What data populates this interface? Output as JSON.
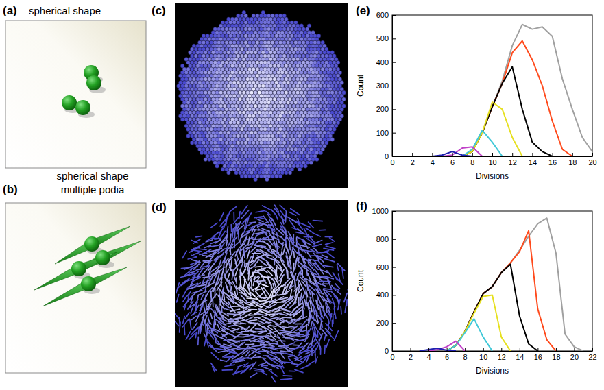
{
  "illustrations": [
    {
      "label": "(a)",
      "caption": [
        "spherical shape"
      ]
    },
    {
      "label": "(b)",
      "caption": [
        "spherical shape",
        "multiple podia"
      ]
    }
  ],
  "images": [
    {
      "label": "(c)"
    },
    {
      "label": "(d)"
    }
  ],
  "chart_data": [
    {
      "type": "line",
      "panel_label": "(e)",
      "x_label": "Divisions",
      "y_label": "Count",
      "x": [
        0,
        1,
        2,
        3,
        4,
        5,
        6,
        7,
        8,
        9,
        10,
        11,
        12,
        13,
        14,
        15,
        16,
        17,
        18,
        19,
        20
      ],
      "xlim": [
        0,
        20
      ],
      "xticks": [
        0,
        2,
        4,
        6,
        8,
        10,
        12,
        14,
        16,
        18,
        20
      ],
      "ylim": [
        0,
        600
      ],
      "yticks": [
        0,
        100,
        200,
        300,
        400,
        500,
        600
      ],
      "series": [
        {
          "color": "#a0a0a0",
          "values": [
            null,
            null,
            null,
            null,
            null,
            null,
            null,
            0,
            20,
            100,
            210,
            320,
            470,
            560,
            540,
            550,
            510,
            330,
            200,
            80,
            20
          ]
        },
        {
          "color": "#ff4a1c",
          "values": [
            null,
            null,
            null,
            null,
            null,
            null,
            null,
            0,
            20,
            100,
            210,
            310,
            440,
            490,
            410,
            300,
            150,
            30,
            0,
            null,
            null
          ]
        },
        {
          "color": "#000000",
          "values": [
            null,
            null,
            null,
            null,
            null,
            null,
            null,
            0,
            20,
            100,
            210,
            310,
            380,
            200,
            60,
            20,
            0,
            null,
            null,
            null,
            null
          ]
        },
        {
          "color": "#e6e020",
          "values": [
            null,
            null,
            null,
            null,
            null,
            null,
            null,
            0,
            20,
            100,
            230,
            200,
            80,
            0,
            null,
            null,
            null,
            null,
            null,
            null,
            null
          ]
        },
        {
          "color": "#40c8d8",
          "values": [
            null,
            null,
            null,
            null,
            null,
            null,
            null,
            0,
            30,
            110,
            60,
            0,
            null,
            null,
            null,
            null,
            null,
            null,
            null,
            null,
            null
          ]
        },
        {
          "color": "#c040c8",
          "values": [
            null,
            null,
            null,
            null,
            null,
            0,
            5,
            35,
            40,
            0,
            null,
            null,
            null,
            null,
            null,
            null,
            null,
            null,
            null,
            null,
            null
          ]
        },
        {
          "color": "#2020b0",
          "values": [
            null,
            null,
            null,
            null,
            0,
            5,
            20,
            5,
            0,
            null,
            null,
            null,
            null,
            null,
            null,
            null,
            null,
            null,
            null,
            null,
            null
          ]
        }
      ]
    },
    {
      "type": "line",
      "panel_label": "(f)",
      "x_label": "Divisions",
      "y_label": "Count",
      "x": [
        0,
        1,
        2,
        3,
        4,
        5,
        6,
        7,
        8,
        9,
        10,
        11,
        12,
        13,
        14,
        15,
        16,
        17,
        18,
        19,
        20,
        21,
        22
      ],
      "xlim": [
        0,
        22
      ],
      "xticks": [
        0,
        2,
        4,
        6,
        8,
        10,
        12,
        14,
        16,
        18,
        20,
        22
      ],
      "ylim": [
        0,
        1000
      ],
      "yticks": [
        0,
        200,
        400,
        600,
        800,
        1000
      ],
      "series": [
        {
          "color": "#a0a0a0",
          "values": [
            null,
            null,
            null,
            null,
            null,
            null,
            0,
            40,
            140,
            280,
            410,
            460,
            560,
            630,
            720,
            820,
            910,
            950,
            700,
            120,
            30,
            0,
            null
          ]
        },
        {
          "color": "#ff4a1c",
          "values": [
            null,
            null,
            null,
            null,
            null,
            null,
            0,
            40,
            140,
            280,
            410,
            460,
            560,
            630,
            710,
            860,
            300,
            80,
            0,
            null,
            null,
            null,
            null
          ]
        },
        {
          "color": "#000000",
          "values": [
            null,
            null,
            null,
            null,
            null,
            null,
            0,
            40,
            140,
            280,
            410,
            460,
            560,
            620,
            250,
            50,
            0,
            null,
            null,
            null,
            null,
            null,
            null
          ]
        },
        {
          "color": "#e6e020",
          "values": [
            null,
            null,
            null,
            null,
            null,
            null,
            0,
            40,
            140,
            270,
            390,
            400,
            100,
            0,
            null,
            null,
            null,
            null,
            null,
            null,
            null,
            null,
            null
          ]
        },
        {
          "color": "#40c8d8",
          "values": [
            null,
            null,
            null,
            null,
            null,
            null,
            0,
            40,
            130,
            230,
            100,
            0,
            null,
            null,
            null,
            null,
            null,
            null,
            null,
            null,
            null,
            null,
            null
          ]
        },
        {
          "color": "#c040c8",
          "values": [
            null,
            null,
            null,
            null,
            0,
            10,
            30,
            70,
            0,
            null,
            null,
            null,
            null,
            null,
            null,
            null,
            null,
            null,
            null,
            null,
            null,
            null,
            null
          ]
        },
        {
          "color": "#2020b0",
          "values": [
            null,
            null,
            null,
            0,
            10,
            20,
            5,
            0,
            null,
            null,
            null,
            null,
            null,
            null,
            null,
            null,
            null,
            null,
            null,
            null,
            null,
            null,
            null
          ]
        }
      ]
    }
  ]
}
